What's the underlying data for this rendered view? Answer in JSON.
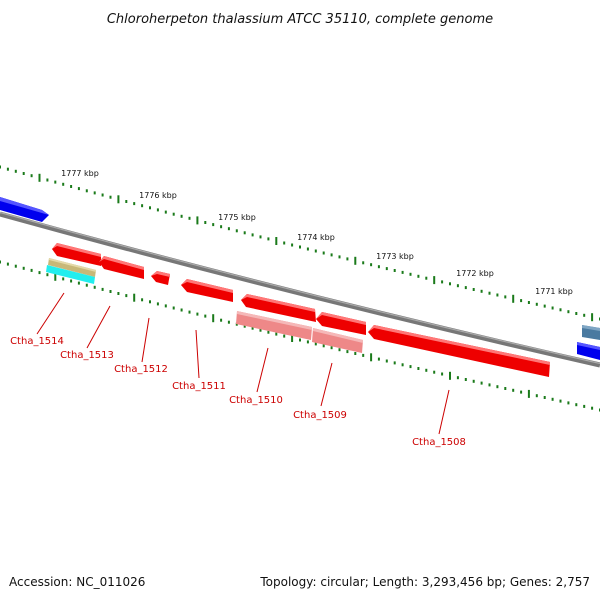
{
  "title": "Chloroherpeton thalassium ATCC 35110, complete genome",
  "accession": "Accession: NC_011026",
  "summary": "Topology: circular; Length: 3,293,456 bp; Genes: 2,757",
  "colors": {
    "backbone": "#777777",
    "tick": "#1a7a1a",
    "gene_red": "#ee0000",
    "gene_pink": "#ee8888",
    "gene_blue": "#0000ee",
    "gene_steelblue": "#4a7aa0",
    "gene_cyan": "#22eeee",
    "gene_khaki": "#c8b878",
    "label": "#cc0000"
  },
  "ticks": [
    "1777 kbp",
    "1776 kbp",
    "1775 kbp",
    "1774 kbp",
    "1773 kbp",
    "1772 kbp",
    "1771 kbp"
  ],
  "genes": [
    "Ctha_1514",
    "Ctha_1513",
    "Ctha_1512",
    "Ctha_1511",
    "Ctha_1510",
    "Ctha_1509",
    "Ctha_1508"
  ]
}
